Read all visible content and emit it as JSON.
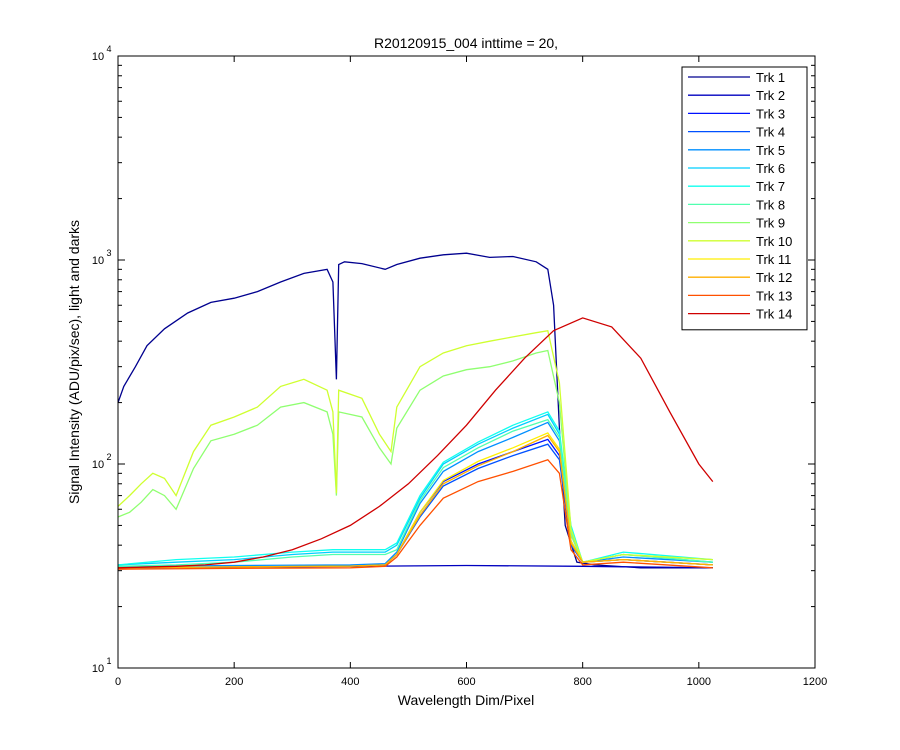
{
  "chart_data": {
    "type": "line",
    "title": "R20120915_004 inttime = 20,",
    "xlabel": "Wavelength Dim/Pixel",
    "ylabel": "Signal Intensity (ADU/pix/sec), light and darks",
    "xlim": [
      0,
      1200
    ],
    "ylim": [
      10,
      10000
    ],
    "yscale": "log",
    "xticks": [
      0,
      200,
      400,
      600,
      800,
      1000,
      1200
    ],
    "xtick_labels": [
      "0",
      "200",
      "400",
      "600",
      "800",
      "1000",
      "1200"
    ],
    "yticks": [
      10,
      100,
      1000,
      10000
    ],
    "ytick_bases": [
      "10",
      "10",
      "10",
      "10"
    ],
    "ytick_exponents": [
      "1",
      "2",
      "3",
      "4"
    ],
    "grid": false,
    "legend_position": "top-right",
    "series": [
      {
        "name": "Trk 1",
        "color": "#00008f",
        "x": [
          0,
          10,
          30,
          50,
          80,
          120,
          160,
          200,
          240,
          280,
          320,
          360,
          370,
          376,
          380,
          390,
          420,
          460,
          480,
          520,
          560,
          600,
          640,
          680,
          720,
          740,
          750,
          760,
          770,
          790,
          820,
          900,
          1024
        ],
        "y": [
          200,
          240,
          300,
          380,
          460,
          550,
          620,
          650,
          700,
          780,
          860,
          900,
          780,
          260,
          950,
          980,
          960,
          900,
          950,
          1020,
          1060,
          1080,
          1030,
          1040,
          980,
          900,
          600,
          150,
          50,
          33,
          32,
          31,
          31
        ]
      },
      {
        "name": "Trk 2",
        "color": "#0000bf",
        "x": [
          0,
          200,
          400,
          600,
          800,
          1024
        ],
        "y": [
          31,
          31.2,
          31.5,
          31.8,
          31.5,
          31
        ]
      },
      {
        "name": "Trk 3",
        "color": "#0010ff",
        "x": [
          0,
          200,
          400,
          460,
          480,
          520,
          560,
          620,
          680,
          740,
          760,
          780,
          800,
          870,
          1024
        ],
        "y": [
          31,
          31.3,
          31.6,
          32,
          36,
          58,
          82,
          100,
          115,
          132,
          110,
          42,
          33,
          34,
          32
        ]
      },
      {
        "name": "Trk 4",
        "color": "#0050ff",
        "x": [
          0,
          200,
          400,
          460,
          480,
          520,
          560,
          620,
          680,
          740,
          760,
          780,
          800,
          870,
          1024
        ],
        "y": [
          31,
          31.3,
          31.6,
          32,
          36,
          55,
          78,
          95,
          110,
          125,
          105,
          40,
          33,
          34,
          32
        ]
      },
      {
        "name": "Trk 5",
        "color": "#008fff",
        "x": [
          0,
          200,
          400,
          460,
          480,
          520,
          560,
          620,
          680,
          740,
          760,
          780,
          800,
          870,
          1024
        ],
        "y": [
          31.5,
          31.8,
          32,
          32.5,
          37,
          64,
          92,
          115,
          135,
          160,
          130,
          45,
          33,
          35,
          33
        ]
      },
      {
        "name": "Trk 6",
        "color": "#00cfff",
        "x": [
          0,
          100,
          200,
          300,
          370,
          380,
          460,
          480,
          520,
          560,
          620,
          680,
          740,
          760,
          780,
          800,
          870,
          1024
        ],
        "y": [
          32,
          33,
          34,
          36,
          37,
          37,
          37,
          40,
          68,
          100,
          125,
          150,
          175,
          140,
          48,
          33,
          36,
          33
        ]
      },
      {
        "name": "Trk 7",
        "color": "#10ffef",
        "x": [
          0,
          100,
          200,
          300,
          370,
          380,
          460,
          480,
          520,
          560,
          620,
          680,
          740,
          760,
          780,
          800,
          870,
          1024
        ],
        "y": [
          32,
          34,
          35,
          37,
          38,
          38,
          38,
          41,
          70,
          102,
          128,
          155,
          180,
          145,
          50,
          33,
          37,
          34
        ]
      },
      {
        "name": "Trk 8",
        "color": "#50ffaf",
        "x": [
          0,
          100,
          200,
          300,
          370,
          380,
          460,
          480,
          520,
          560,
          620,
          680,
          740,
          760,
          780,
          800,
          870,
          1024
        ],
        "y": [
          31.5,
          32,
          33,
          35,
          36,
          36,
          36,
          38,
          66,
          96,
          120,
          145,
          165,
          135,
          46,
          33,
          36,
          33
        ]
      },
      {
        "name": "Trk 9",
        "color": "#8fff70",
        "x": [
          0,
          20,
          40,
          60,
          80,
          100,
          130,
          160,
          200,
          240,
          280,
          320,
          360,
          370,
          376,
          380,
          420,
          450,
          470,
          480,
          520,
          560,
          600,
          640,
          680,
          720,
          740,
          760,
          780,
          800,
          870,
          1024
        ],
        "y": [
          55,
          58,
          65,
          75,
          70,
          60,
          95,
          130,
          140,
          155,
          190,
          200,
          180,
          140,
          70,
          180,
          170,
          120,
          100,
          150,
          230,
          270,
          290,
          300,
          320,
          350,
          360,
          200,
          45,
          33,
          36,
          34
        ]
      },
      {
        "name": "Trk 10",
        "color": "#cfff30",
        "x": [
          0,
          20,
          40,
          60,
          80,
          100,
          130,
          160,
          200,
          240,
          280,
          320,
          360,
          370,
          376,
          380,
          420,
          450,
          470,
          480,
          520,
          560,
          600,
          640,
          680,
          720,
          740,
          760,
          780,
          800,
          870,
          1024
        ],
        "y": [
          62,
          70,
          80,
          90,
          85,
          70,
          115,
          155,
          170,
          190,
          240,
          260,
          230,
          180,
          72,
          230,
          210,
          140,
          115,
          190,
          300,
          350,
          380,
          400,
          420,
          440,
          450,
          250,
          48,
          33,
          36,
          34
        ]
      },
      {
        "name": "Trk 11",
        "color": "#ffef00",
        "x": [
          0,
          200,
          400,
          460,
          480,
          520,
          560,
          620,
          680,
          740,
          760,
          780,
          800,
          870,
          1024
        ],
        "y": [
          31,
          31.3,
          31.6,
          32,
          36,
          58,
          83,
          103,
          120,
          142,
          118,
          42,
          33,
          34,
          32
        ]
      },
      {
        "name": "Trk 12",
        "color": "#ffaf00",
        "x": [
          0,
          200,
          400,
          460,
          480,
          520,
          560,
          620,
          680,
          740,
          760,
          780,
          800,
          870,
          1024
        ],
        "y": [
          31,
          31.3,
          31.6,
          32,
          36,
          56,
          80,
          98,
          115,
          138,
          115,
          41,
          33,
          34,
          32
        ]
      },
      {
        "name": "Trk 13",
        "color": "#ff5000",
        "x": [
          0,
          200,
          400,
          460,
          480,
          520,
          560,
          620,
          680,
          740,
          760,
          780,
          800,
          870,
          1024
        ],
        "y": [
          30.5,
          30.8,
          31,
          31.5,
          35,
          50,
          68,
          82,
          92,
          105,
          90,
          38,
          32,
          33,
          31
        ]
      },
      {
        "name": "Trk 14",
        "color": "#cf0000",
        "x": [
          0,
          100,
          150,
          200,
          250,
          300,
          350,
          400,
          450,
          500,
          550,
          600,
          650,
          700,
          750,
          800,
          850,
          900,
          950,
          1000,
          1024
        ],
        "y": [
          31,
          31.5,
          32,
          33,
          35,
          38,
          43,
          50,
          62,
          80,
          110,
          155,
          230,
          330,
          450,
          520,
          470,
          330,
          180,
          100,
          82
        ]
      }
    ]
  }
}
